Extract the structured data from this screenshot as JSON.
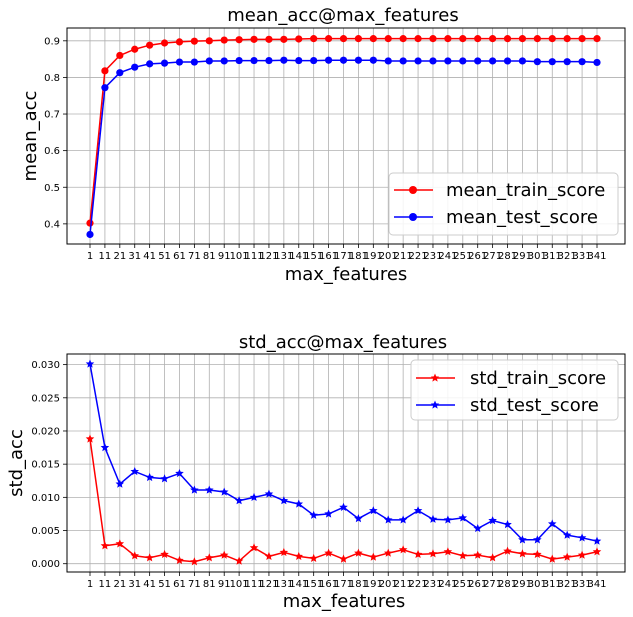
{
  "chart_data": [
    {
      "type": "line",
      "title": "mean_acc@max_features",
      "xlabel": "max_features",
      "ylabel": "mean_acc",
      "x": [
        1,
        11,
        21,
        31,
        41,
        51,
        61,
        71,
        81,
        91,
        101,
        111,
        121,
        131,
        141,
        151,
        161,
        171,
        181,
        191,
        201,
        211,
        221,
        231,
        241,
        251,
        261,
        271,
        281,
        291,
        301,
        311,
        321,
        331,
        341
      ],
      "x_tick_labels": [
        "1",
        "11",
        "21",
        "31",
        "41",
        "51",
        "61",
        "71",
        "81",
        "91",
        "101",
        "111",
        "121",
        "131",
        "141",
        "151",
        "161",
        "171",
        "181",
        "191",
        "201",
        "211",
        "221",
        "231",
        "241",
        "251",
        "261",
        "271",
        "281",
        "291",
        "301",
        "311",
        "321",
        "331",
        "341"
      ],
      "yticks": [
        0.4,
        0.5,
        0.6,
        0.7,
        0.8,
        0.9
      ],
      "ytick_labels": [
        "0.4",
        "0.5",
        "0.6",
        "0.7",
        "0.8",
        "0.9"
      ],
      "ylim": [
        0.345,
        0.935
      ],
      "grid": true,
      "legend_position": "bottom-right",
      "series": [
        {
          "name": "mean_train_score",
          "color": "#ff0000",
          "marker": "circle",
          "values": [
            0.402,
            0.818,
            0.86,
            0.877,
            0.888,
            0.894,
            0.897,
            0.899,
            0.9,
            0.902,
            0.903,
            0.904,
            0.904,
            0.904,
            0.905,
            0.906,
            0.906,
            0.906,
            0.906,
            0.906,
            0.906,
            0.906,
            0.906,
            0.906,
            0.906,
            0.906,
            0.906,
            0.906,
            0.906,
            0.906,
            0.906,
            0.906,
            0.906,
            0.906,
            0.906
          ]
        },
        {
          "name": "mean_test_score",
          "color": "#0000ff",
          "marker": "circle",
          "values": [
            0.371,
            0.772,
            0.813,
            0.828,
            0.837,
            0.839,
            0.842,
            0.842,
            0.845,
            0.845,
            0.846,
            0.846,
            0.846,
            0.847,
            0.846,
            0.846,
            0.847,
            0.847,
            0.847,
            0.847,
            0.845,
            0.845,
            0.845,
            0.845,
            0.845,
            0.845,
            0.845,
            0.845,
            0.845,
            0.845,
            0.843,
            0.843,
            0.843,
            0.843,
            0.841
          ]
        }
      ]
    },
    {
      "type": "line",
      "title": "std_acc@max_features",
      "xlabel": "max_features",
      "ylabel": "std_acc",
      "x": [
        1,
        11,
        21,
        31,
        41,
        51,
        61,
        71,
        81,
        91,
        101,
        111,
        121,
        131,
        141,
        151,
        161,
        171,
        181,
        191,
        201,
        211,
        221,
        231,
        241,
        251,
        261,
        271,
        281,
        291,
        301,
        311,
        321,
        331,
        341
      ],
      "x_tick_labels": [
        "1",
        "11",
        "21",
        "31",
        "41",
        "51",
        "61",
        "71",
        "81",
        "91",
        "101",
        "111",
        "121",
        "131",
        "141",
        "151",
        "161",
        "171",
        "181",
        "191",
        "201",
        "211",
        "221",
        "231",
        "241",
        "251",
        "261",
        "271",
        "281",
        "291",
        "301",
        "311",
        "321",
        "331",
        "341"
      ],
      "yticks": [
        0.0,
        0.005,
        0.01,
        0.015,
        0.02,
        0.025,
        0.03
      ],
      "ytick_labels": [
        "0.000",
        "0.005",
        "0.010",
        "0.015",
        "0.020",
        "0.025",
        "0.030"
      ],
      "ylim": [
        -0.00125,
        0.0316
      ],
      "grid": true,
      "legend_position": "top-right",
      "series": [
        {
          "name": "std_train_score",
          "color": "#ff0000",
          "marker": "star",
          "values": [
            0.0188,
            0.0027,
            0.003,
            0.0012,
            0.0009,
            0.0014,
            0.0005,
            0.0003,
            0.0009,
            0.0013,
            0.0004,
            0.0024,
            0.0011,
            0.0017,
            0.0011,
            0.0008,
            0.0016,
            0.0007,
            0.0016,
            0.001,
            0.0016,
            0.0021,
            0.0014,
            0.0015,
            0.0018,
            0.0012,
            0.0013,
            0.0009,
            0.0019,
            0.0015,
            0.0014,
            0.0007,
            0.001,
            0.0013,
            0.0018
          ]
        },
        {
          "name": "std_test_score",
          "color": "#0000ff",
          "marker": "star",
          "values": [
            0.0301,
            0.0175,
            0.012,
            0.0139,
            0.013,
            0.0128,
            0.0136,
            0.0111,
            0.0111,
            0.0108,
            0.0095,
            0.01,
            0.0105,
            0.0095,
            0.009,
            0.0073,
            0.0075,
            0.0085,
            0.0068,
            0.008,
            0.0066,
            0.0066,
            0.008,
            0.0067,
            0.0066,
            0.0069,
            0.0053,
            0.0065,
            0.0059,
            0.0036,
            0.0036,
            0.006,
            0.0043,
            0.0039,
            0.0034
          ]
        }
      ]
    }
  ]
}
